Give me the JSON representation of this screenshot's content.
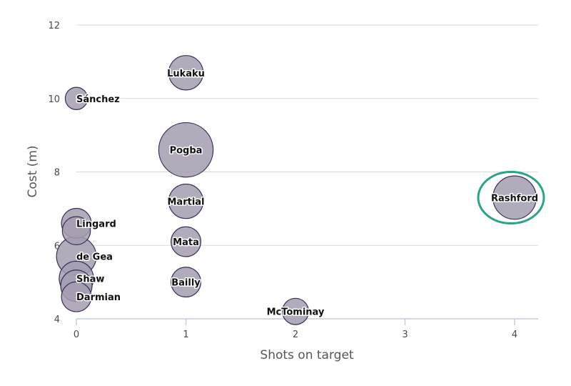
{
  "chart_data": {
    "type": "scatter",
    "xlabel": "Shots on target",
    "ylabel": "Cost (m)",
    "xlim": [
      0,
      4.2
    ],
    "ylim": [
      4,
      12
    ],
    "x_ticks": [
      0,
      1,
      2,
      3,
      4
    ],
    "y_ticks": [
      4,
      6,
      8,
      10,
      12
    ],
    "grid": "horizontal",
    "colors": {
      "bubble_fill": "#a59cb0",
      "bubble_stroke": "#3a2f58",
      "highlight": "#2aa58a",
      "grid": "#d9d9d9",
      "axis": "#c5cdd8"
    },
    "points": [
      {
        "label": "Lukaku",
        "x": 1,
        "y": 10.7,
        "size": 1.2
      },
      {
        "label": "Sánchez",
        "x": 0,
        "y": 10.0,
        "size": 0.5
      },
      {
        "label": "Pogba",
        "x": 1,
        "y": 8.6,
        "size": 3.0
      },
      {
        "label": "Martial",
        "x": 1,
        "y": 7.2,
        "size": 1.2
      },
      {
        "label": "Rashford",
        "x": 4,
        "y": 7.3,
        "size": 1.9,
        "highlighted": true
      },
      {
        "label": "Lingard",
        "x": 0,
        "y": 6.6,
        "size": 0.9
      },
      {
        "label": "",
        "x": 0,
        "y": 6.4,
        "size": 0.8
      },
      {
        "label": "Mata",
        "x": 1,
        "y": 6.1,
        "size": 0.9
      },
      {
        "label": "de Gea",
        "x": 0,
        "y": 5.7,
        "size": 1.6
      },
      {
        "label": "Shaw",
        "x": 0,
        "y": 5.1,
        "size": 1.2
      },
      {
        "label": "",
        "x": 0,
        "y": 4.9,
        "size": 1.0
      },
      {
        "label": "Bailly",
        "x": 1,
        "y": 5.0,
        "size": 0.9
      },
      {
        "label": "Darmian",
        "x": 0,
        "y": 4.6,
        "size": 0.9
      },
      {
        "label": "McTominay",
        "x": 2,
        "y": 4.2,
        "size": 0.7
      }
    ]
  }
}
